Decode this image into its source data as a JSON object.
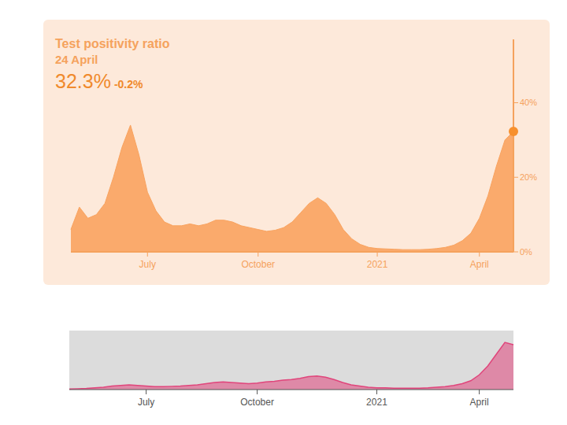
{
  "chart_data": [
    {
      "type": "area",
      "title": "Test positivity ratio",
      "subtitle": "24 April",
      "annotations": [
        "32.3%",
        "-0.2%"
      ],
      "categories": [
        null,
        null,
        null,
        null,
        null,
        null,
        null,
        null,
        null,
        "July",
        null,
        null,
        null,
        null,
        null,
        null,
        null,
        null,
        null,
        null,
        null,
        null,
        "October",
        null,
        null,
        null,
        null,
        null,
        null,
        null,
        null,
        null,
        null,
        null,
        null,
        null,
        "2021",
        null,
        null,
        null,
        null,
        null,
        null,
        null,
        null,
        null,
        null,
        null,
        "April",
        null,
        null,
        null,
        null
      ],
      "values": [
        6,
        12,
        9,
        10,
        13,
        20,
        28,
        34,
        26,
        16,
        11,
        8,
        7,
        7,
        7.5,
        7,
        7.5,
        8.5,
        8.5,
        8,
        7,
        6.5,
        6,
        5.5,
        5.8,
        6.5,
        8,
        10.5,
        13,
        14.5,
        13,
        10,
        6,
        3.5,
        2,
        1.2,
        0.9,
        0.8,
        0.7,
        0.6,
        0.6,
        0.6,
        0.7,
        0.9,
        1.2,
        1.8,
        3,
        5,
        9,
        15,
        23,
        30,
        32.3
      ],
      "color": "#f9a35f",
      "ylim": [
        0,
        57
      ],
      "yticks": [
        {
          "value": 0,
          "label": "0%"
        },
        {
          "value": 20,
          "label": "20%"
        },
        {
          "value": 40,
          "label": "40%"
        }
      ]
    },
    {
      "type": "area",
      "categories": [
        null,
        null,
        null,
        null,
        null,
        null,
        null,
        null,
        null,
        "July",
        null,
        null,
        null,
        null,
        null,
        null,
        null,
        null,
        null,
        null,
        null,
        null,
        "October",
        null,
        null,
        null,
        null,
        null,
        null,
        null,
        null,
        null,
        null,
        null,
        null,
        null,
        "2021",
        null,
        null,
        null,
        null,
        null,
        null,
        null,
        null,
        null,
        null,
        null,
        "April",
        null,
        null,
        null,
        null
      ],
      "values": [
        1,
        1.5,
        2,
        3,
        4,
        6,
        7,
        8,
        7,
        6,
        5,
        5,
        5.5,
        6,
        7,
        8,
        10,
        12,
        13,
        12,
        11,
        10,
        11,
        13,
        14,
        16,
        17,
        19,
        22,
        23,
        21,
        17,
        12,
        8,
        6,
        4,
        3,
        3,
        2.5,
        2.5,
        2.5,
        2.5,
        3,
        4,
        5,
        7,
        10,
        15,
        25,
        40,
        60,
        80,
        76
      ],
      "color": "#e0457b",
      "ylim": [
        0,
        100
      ],
      "tick_labels": "x"
    }
  ]
}
